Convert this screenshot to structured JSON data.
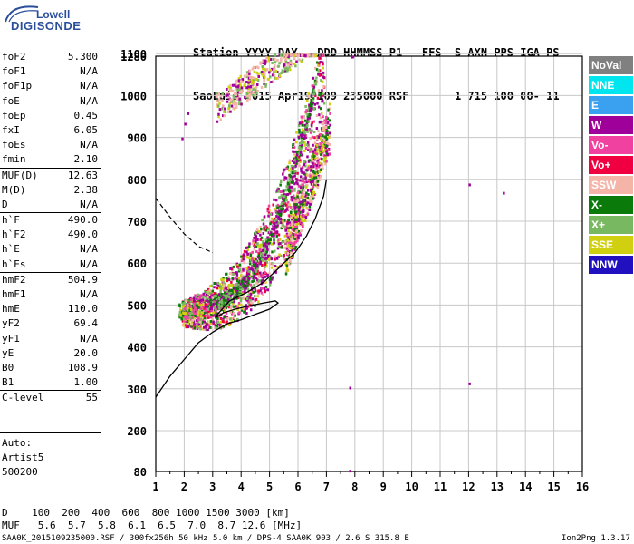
{
  "logo": {
    "line1": "Lowell",
    "line2": "DIGISONDE"
  },
  "header": {
    "line1": "Station YYYY DAY   DDD HHMMSS P1   FFS  S AXN PPS IGA PS",
    "line2": "SaoLuis 2015 Apr19 109 235000 RSF       1 715 100 00- 11"
  },
  "params": [
    {
      "name": "foF2",
      "value": "5.300"
    },
    {
      "name": "foF1",
      "value": "N/A"
    },
    {
      "name": "foF1p",
      "value": "N/A"
    },
    {
      "name": "foE",
      "value": "N/A"
    },
    {
      "name": "foEp",
      "value": "0.45"
    },
    {
      "name": "fxI",
      "value": "6.05"
    },
    {
      "name": "foEs",
      "value": "N/A"
    },
    {
      "name": "fmin",
      "value": "2.10",
      "sep_after": true
    },
    {
      "name": "MUF(D)",
      "value": "12.63"
    },
    {
      "name": "M(D)",
      "value": "2.38"
    },
    {
      "name": "D",
      "value": "N/A",
      "sep_after": true
    },
    {
      "name": "h`F",
      "value": "490.0"
    },
    {
      "name": "h`F2",
      "value": "490.0"
    },
    {
      "name": "h`E",
      "value": "N/A"
    },
    {
      "name": "h`Es",
      "value": "N/A",
      "sep_after": true
    },
    {
      "name": "hmF2",
      "value": "504.9"
    },
    {
      "name": "hmF1",
      "value": "N/A"
    },
    {
      "name": "hmE",
      "value": "110.0"
    },
    {
      "name": "yF2",
      "value": "69.4"
    },
    {
      "name": "yF1",
      "value": "N/A"
    },
    {
      "name": "yE",
      "value": "20.0"
    },
    {
      "name": "B0",
      "value": "108.9"
    },
    {
      "name": "B1",
      "value": "1.00",
      "sep_after": true
    },
    {
      "name": "C-level",
      "value": "55"
    }
  ],
  "auto": {
    "line1": "Auto:",
    "line2": "Artist5",
    "line3": "500200"
  },
  "legend": [
    {
      "label": "NoVal",
      "color": "#808080"
    },
    {
      "label": "NNE",
      "color": "#00e5ee"
    },
    {
      "label": "E",
      "color": "#3aa0f0"
    },
    {
      "label": "W",
      "color": "#a0009a"
    },
    {
      "label": "Vo-",
      "color": "#f040a0"
    },
    {
      "label": "Vo+",
      "color": "#f00040"
    },
    {
      "label": "SSW",
      "color": "#f4b4a8"
    },
    {
      "label": "X-",
      "color": "#0a7a0a"
    },
    {
      "label": "X+",
      "color": "#78b860"
    },
    {
      "label": "SSE",
      "color": "#d0d010"
    },
    {
      "label": "NNW",
      "color": "#2010c0"
    }
  ],
  "footer": {
    "d_row": "D    100  200  400  600  800 1000 1500 3000 [km]",
    "muf_row": "MUF   5.6  5.7  5.8  6.1  6.5  7.0  8.7 12.6 [MHz]",
    "file_info": "SAA0K_2015109235000.RSF / 300fx256h 50 kHz 5.0 km / DPS-4 SAA0K 903 / 2.6 S 315.8 E",
    "version": "Ion2Png 1.3.17"
  },
  "chart_data": {
    "type": "scatter",
    "xlim": [
      1,
      16
    ],
    "ylim": [
      80,
      1280
    ],
    "x_ticks": [
      "1",
      "2",
      "3",
      "4",
      "5",
      "6",
      "7",
      "8",
      "9",
      "10",
      "11",
      "12",
      "13",
      "14",
      "15",
      "16"
    ],
    "y_ticks": [
      "80",
      "200",
      "300",
      "400",
      "500",
      "600",
      "700",
      "800",
      "900",
      "1000",
      "1100",
      "1280"
    ],
    "profile_solid": [
      [
        1,
        280
      ],
      [
        1.5,
        330
      ],
      [
        2,
        370
      ],
      [
        2.5,
        410
      ],
      [
        3,
        435
      ],
      [
        3.5,
        455
      ],
      [
        4,
        465
      ],
      [
        4.5,
        478
      ],
      [
        5,
        490
      ],
      [
        5.3,
        505
      ],
      [
        5.2,
        510
      ],
      [
        4.8,
        505
      ],
      [
        4.3,
        498
      ],
      [
        3.8,
        490
      ],
      [
        3.4,
        482
      ],
      [
        3.1,
        470
      ],
      [
        3.2,
        480
      ],
      [
        3.6,
        510
      ],
      [
        4.2,
        530
      ],
      [
        4.8,
        555
      ],
      [
        5.2,
        580
      ],
      [
        5.5,
        600
      ],
      [
        5.9,
        625
      ],
      [
        6.3,
        665
      ],
      [
        6.6,
        705
      ],
      [
        6.9,
        760
      ],
      [
        7.0,
        800
      ]
    ],
    "profile_dashed": [
      [
        1,
        755
      ],
      [
        1.5,
        710
      ],
      [
        2,
        670
      ],
      [
        2.5,
        640
      ],
      [
        3,
        625
      ]
    ]
  }
}
